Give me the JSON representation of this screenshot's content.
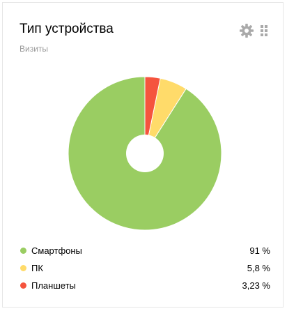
{
  "widget": {
    "title": "Тип устройства",
    "subtitle": "Визиты",
    "settings_icon": "gear-icon",
    "drag_icon": "drag-handle-icon"
  },
  "legend": [
    {
      "label": "Смартфоны",
      "value": "91 %",
      "color": "#9acd62"
    },
    {
      "label": "ПК",
      "value": "5,8 %",
      "color": "#ffdb6a"
    },
    {
      "label": "Планшеты",
      "value": "3,23 %",
      "color": "#f5543e"
    }
  ],
  "chart_data": {
    "type": "pie",
    "title": "Тип устройства",
    "subtitle": "Визиты",
    "categories": [
      "Смартфоны",
      "ПК",
      "Планшеты"
    ],
    "values": [
      91,
      5.8,
      3.23
    ],
    "colors": [
      "#9acd62",
      "#ffdb6a",
      "#f5543e"
    ],
    "donut": true,
    "legend_position": "bottom"
  }
}
